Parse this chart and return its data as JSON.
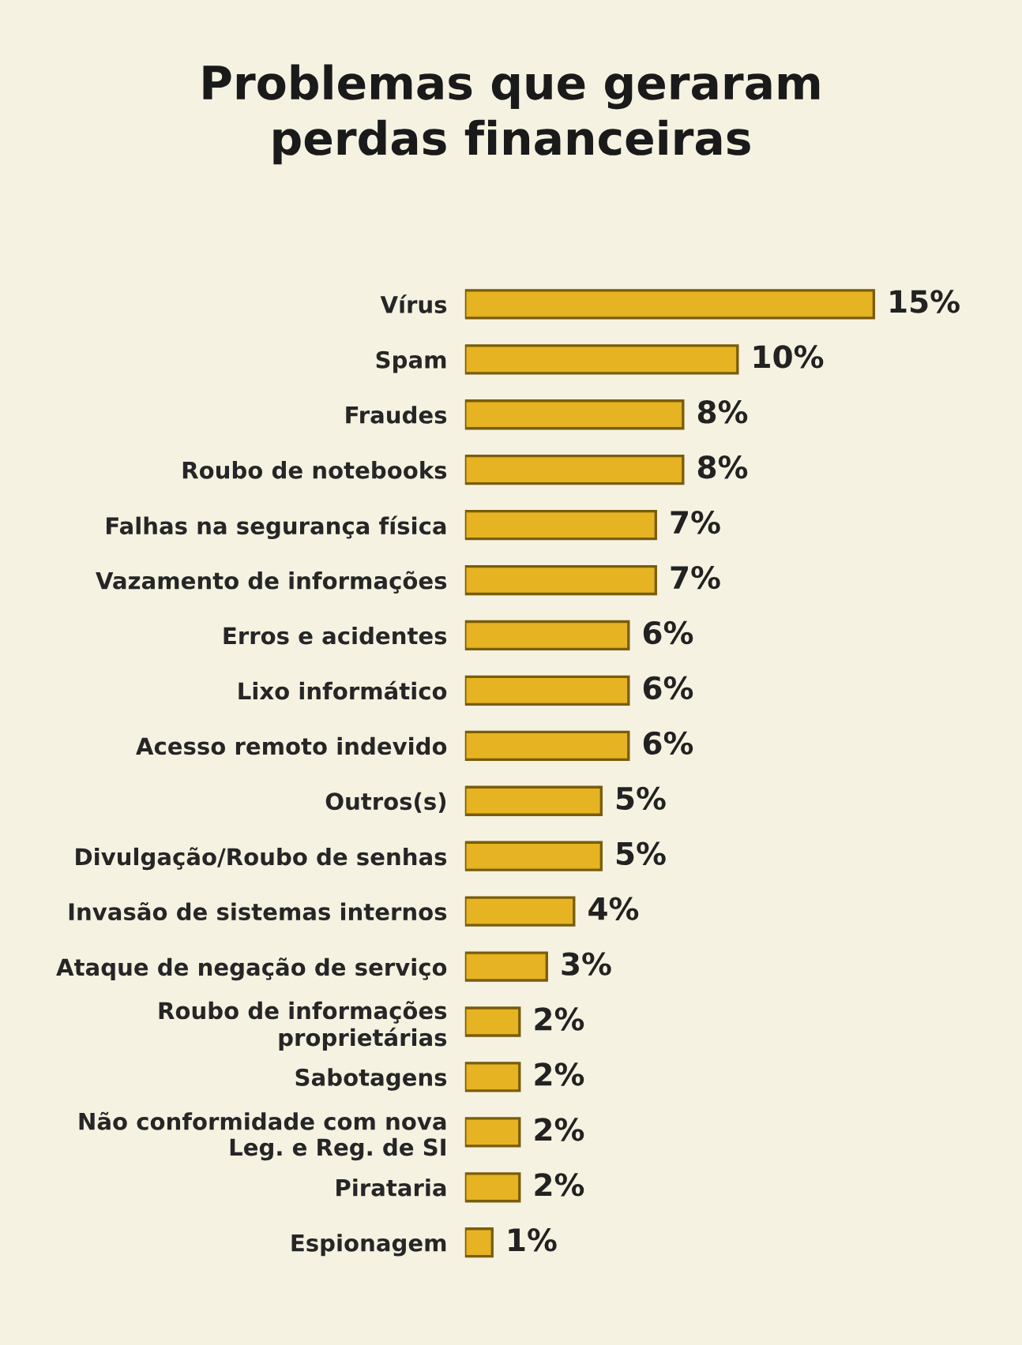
{
  "chart_data": {
    "type": "bar",
    "orientation": "horizontal",
    "title": "Problemas que geraram\nperdas financeiras",
    "categories": [
      "Vírus",
      "Spam",
      "Fraudes",
      "Roubo de notebooks",
      "Falhas na segurança física",
      "Vazamento de informações",
      "Erros e acidentes",
      "Lixo informático",
      "Acesso remoto indevido",
      "Outros(s)",
      "Divulgação/Roubo de senhas",
      "Invasão de sistemas internos",
      "Ataque de negação de serviço",
      "Roubo de informações\nproprietárias",
      "Sabotagens",
      "Não conformidade com nova\nLeg. e Reg. de SI",
      "Pirataria",
      "Espionagem"
    ],
    "values": [
      15,
      10,
      8,
      8,
      7,
      7,
      6,
      6,
      6,
      5,
      5,
      4,
      3,
      2,
      2,
      2,
      2,
      1
    ],
    "value_labels": [
      "15%",
      "10%",
      "8%",
      "8%",
      "7%",
      "7%",
      "6%",
      "6%",
      "6%",
      "5%",
      "5%",
      "4%",
      "3%",
      "2%",
      "2%",
      "2%",
      "2%",
      "1%"
    ],
    "color": "#e6b422",
    "grid": false,
    "legend": false
  }
}
